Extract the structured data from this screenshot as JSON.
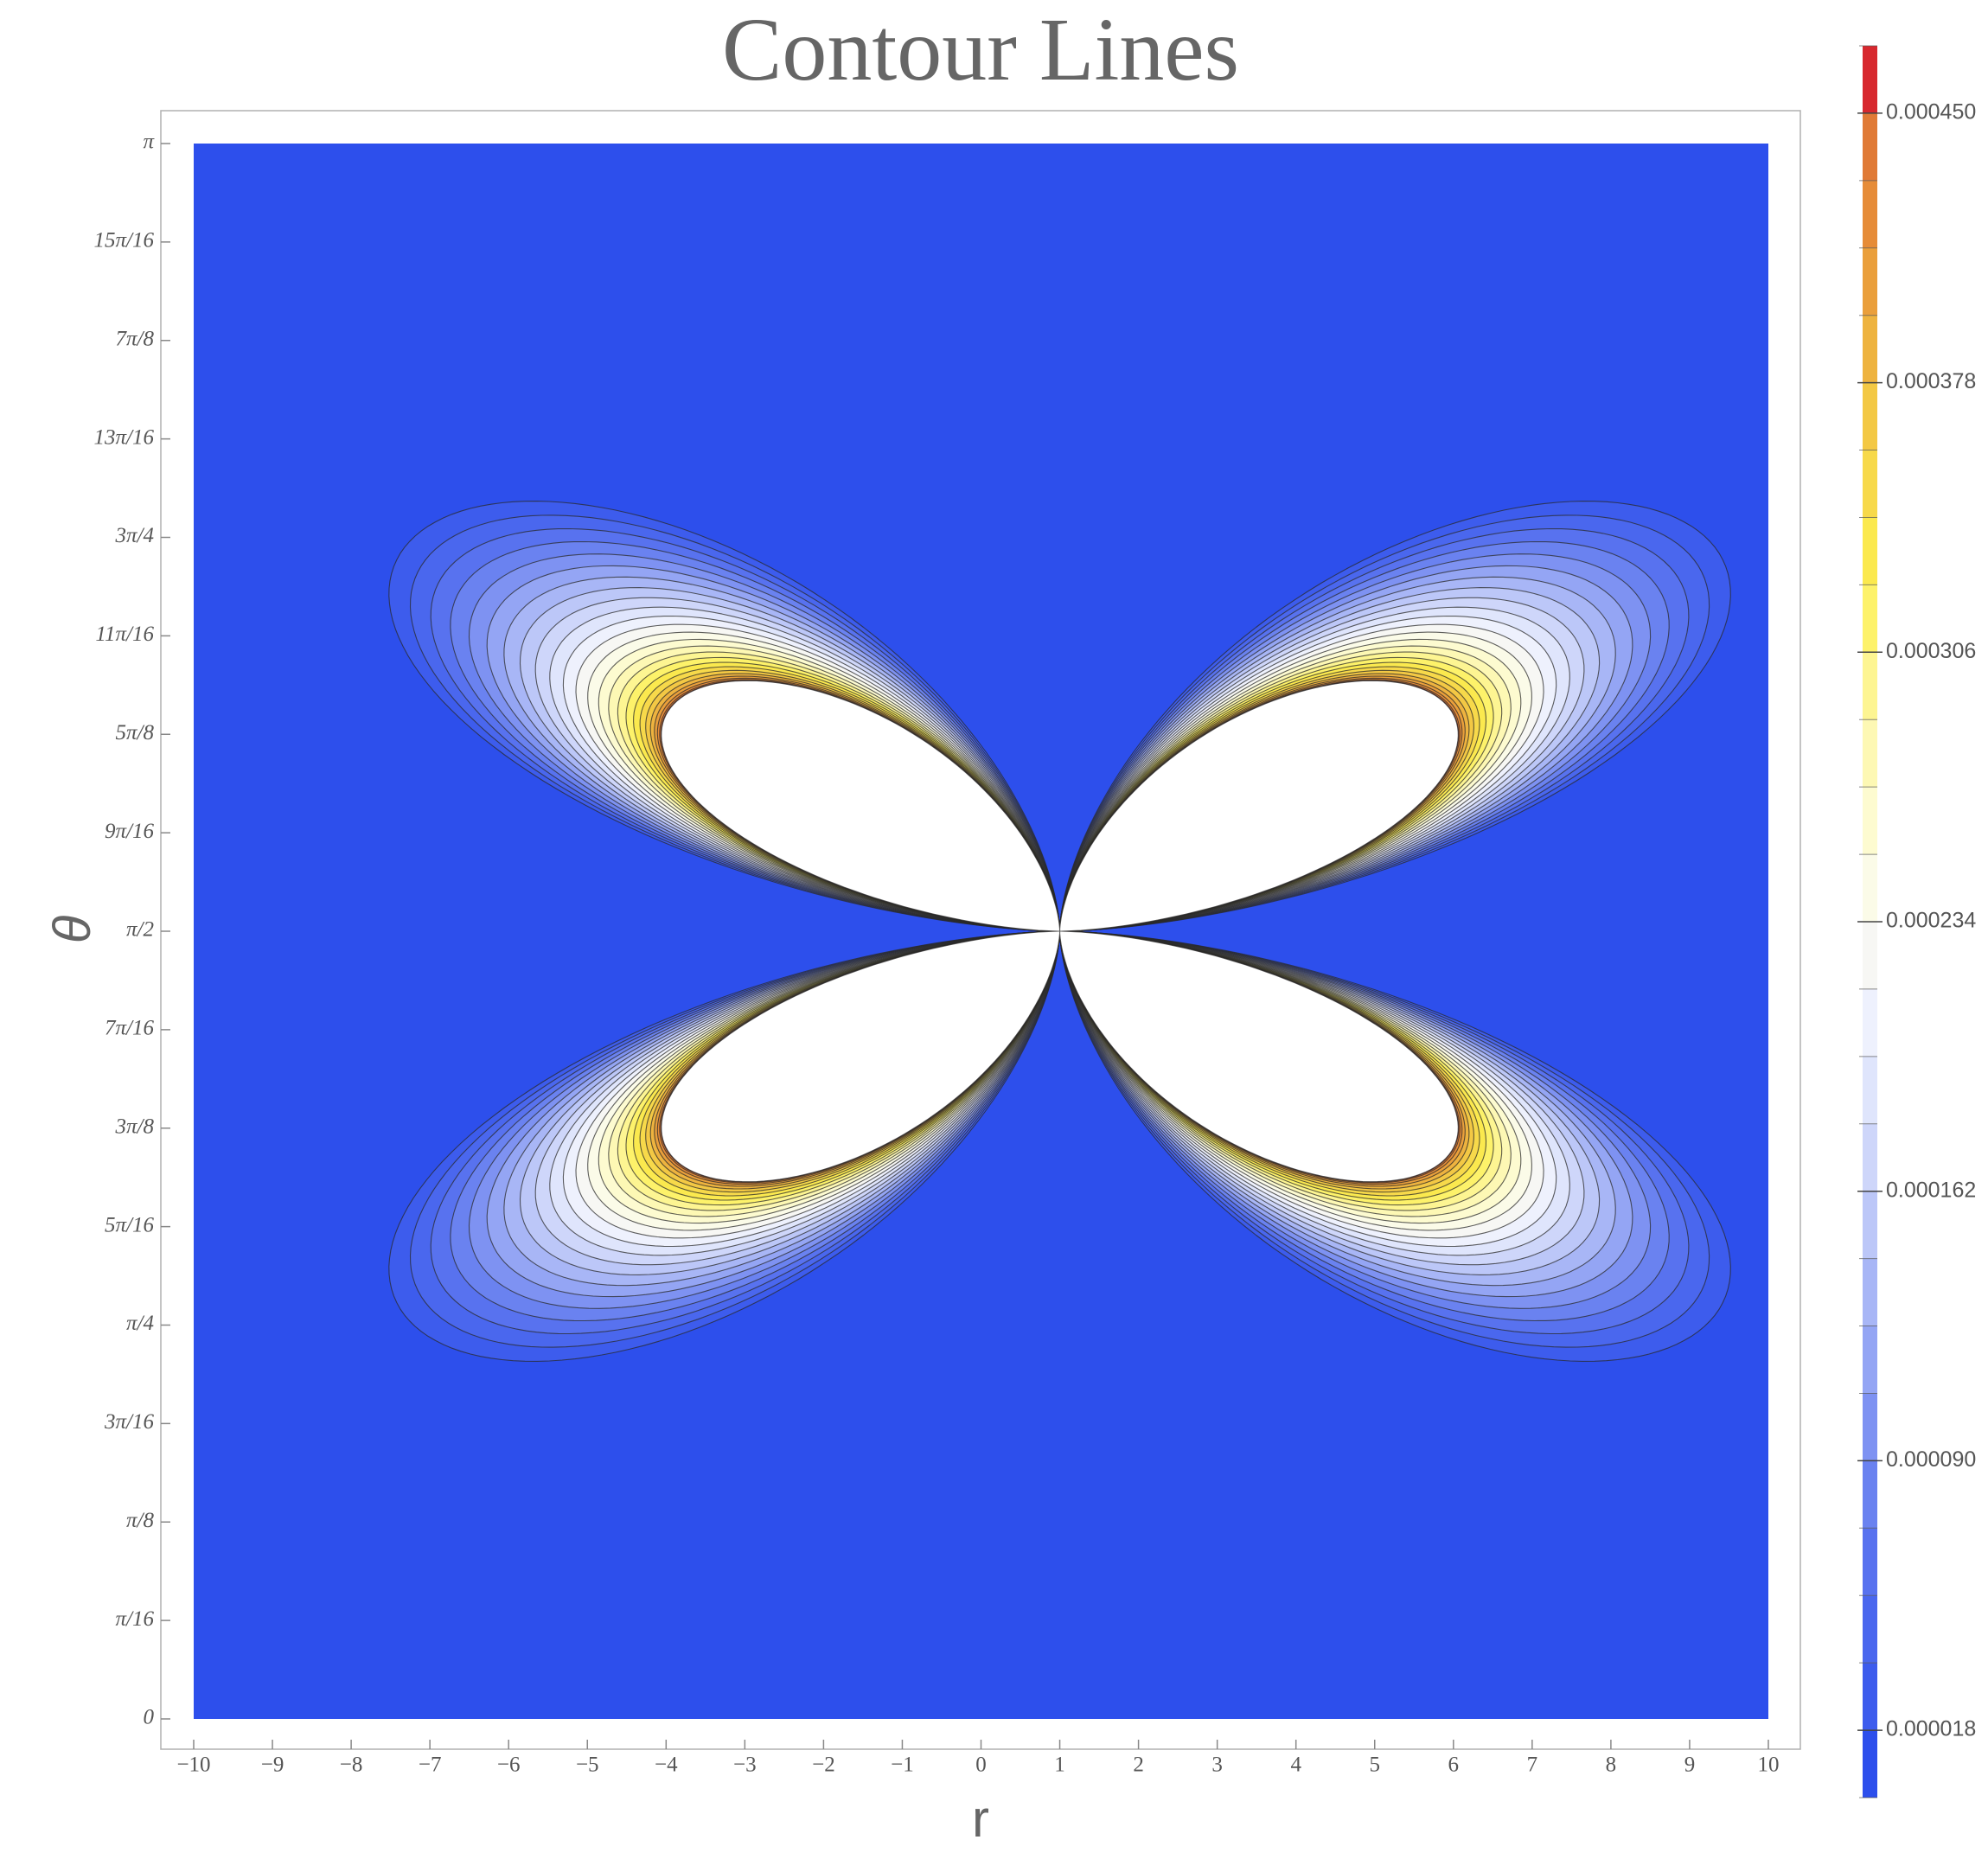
{
  "chart_data": {
    "type": "contour",
    "title": "Contour Lines",
    "xlabel": "r",
    "ylabel": "θ",
    "xlim": [
      -10,
      10
    ],
    "xticks": [
      {
        "value": -10,
        "label": "−10"
      },
      {
        "value": -9,
        "label": "−9"
      },
      {
        "value": -8,
        "label": "−8"
      },
      {
        "value": -7,
        "label": "−7"
      },
      {
        "value": -6,
        "label": "−6"
      },
      {
        "value": -5,
        "label": "−5"
      },
      {
        "value": -4,
        "label": "−4"
      },
      {
        "value": -3,
        "label": "−3"
      },
      {
        "value": -2,
        "label": "−2"
      },
      {
        "value": -1,
        "label": "−1"
      },
      0,
      1,
      2,
      3,
      4,
      5,
      6,
      7,
      8,
      9,
      10
    ],
    "ylim": [
      0,
      3.141593
    ],
    "yticks": [
      0,
      {
        "value": 0.19635,
        "label": "π/16"
      },
      {
        "value": 0.392699,
        "label": "π/8"
      },
      {
        "value": 0.589049,
        "label": "3π/16"
      },
      {
        "value": 0.785398,
        "label": "π/4"
      },
      {
        "value": 0.981748,
        "label": "5π/16"
      },
      {
        "value": 1.178097,
        "label": "3π/8"
      },
      {
        "value": 1.374447,
        "label": "7π/16"
      },
      {
        "value": 1.570796,
        "label": "π/2"
      },
      {
        "value": 1.767146,
        "label": "9π/16"
      },
      {
        "value": 1.963495,
        "label": "5π/8"
      },
      {
        "value": 2.159845,
        "label": "11π/16"
      },
      {
        "value": 2.356194,
        "label": "3π/4"
      },
      {
        "value": 2.552544,
        "label": "13π/16"
      },
      {
        "value": 2.748894,
        "label": "7π/8"
      },
      {
        "value": 2.945243,
        "label": "15π/16"
      },
      {
        "value": 3.141593,
        "label": "π"
      }
    ],
    "colorbar": {
      "levels": [
        0,
        1.8e-05,
        3.6e-05,
        5.4e-05,
        7.2e-05,
        9e-05,
        0.000108,
        0.000126,
        0.000144,
        0.000162,
        0.00018,
        0.000198,
        0.000216,
        0.000234,
        0.000252,
        0.00027,
        0.000288,
        0.000306,
        0.000324,
        0.000342,
        0.00036,
        0.000378,
        0.000396,
        0.000414,
        0.000432,
        0.00045,
        0.000468
      ],
      "colors": [
        "#2d4fec",
        "#3d5ced",
        "#4a67ee",
        "#5872ef",
        "#6a82f0",
        "#7e92f2",
        "#94a5f4",
        "#a8b6f6",
        "#bcc7f8",
        "#ced6fa",
        "#dfe5fc",
        "#eef1fd",
        "#f7f7f4",
        "#fbfbe8",
        "#fdfbd0",
        "#fdf8b4",
        "#fdf592",
        "#fdf26a",
        "#fbe94e",
        "#f7d94a",
        "#f3c844",
        "#eeb33f",
        "#ea9f3b",
        "#e68c38",
        "#e07a36",
        "#d7282e"
      ],
      "above_color": "#ffffff",
      "ticks": [
        {
          "value": 1.8e-05,
          "label": "0.000018"
        },
        {
          "value": 9e-05,
          "label": "0.000090"
        },
        {
          "value": 0.000162,
          "label": "0.000162"
        },
        {
          "value": 0.000234,
          "label": "0.000234"
        },
        {
          "value": 0.000306,
          "label": "0.000306"
        },
        {
          "value": 0.000378,
          "label": "0.000378"
        },
        {
          "value": 0.00045,
          "label": "0.000450"
        }
      ]
    }
  }
}
